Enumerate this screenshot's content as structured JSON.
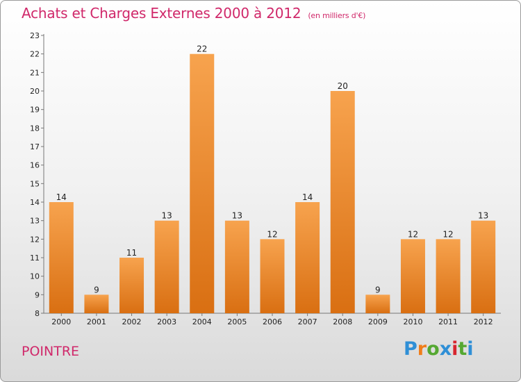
{
  "title": "Achats et Charges Externes 2000 à 2012",
  "subtitle": "(en milliers d'€)",
  "commune": "POINTRE",
  "logo": {
    "letters": [
      "P",
      "r",
      "o",
      "x",
      "i",
      "t",
      "i"
    ],
    "colors": [
      "#2f8fd6",
      "#f07d1a",
      "#55a832",
      "#2f8fd6",
      "#d7262f",
      "#55a832",
      "#2f8fd6"
    ]
  },
  "colors": {
    "title": "#d0286a",
    "bar_top": "#f7a34e",
    "bar_bottom": "#d96f12"
  },
  "chart_data": {
    "type": "bar",
    "title": "Achats et Charges Externes 2000 à 2012",
    "subtitle": "(en milliers d'€)",
    "categories": [
      "2000",
      "2001",
      "2002",
      "2003",
      "2004",
      "2005",
      "2006",
      "2007",
      "2008",
      "2009",
      "2010",
      "2011",
      "2012"
    ],
    "values": [
      14,
      9,
      11,
      13,
      22,
      13,
      12,
      14,
      20,
      9,
      12,
      12,
      13
    ],
    "ylim": [
      8,
      23
    ],
    "yticks": [
      8,
      9,
      10,
      11,
      12,
      13,
      14,
      15,
      16,
      17,
      18,
      19,
      20,
      21,
      22,
      23
    ],
    "grid": false,
    "legend": "none"
  }
}
